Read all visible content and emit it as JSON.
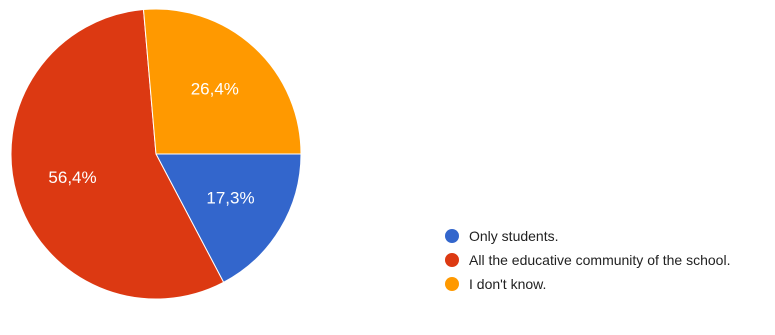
{
  "chart_data": {
    "type": "pie",
    "slices": [
      {
        "label": "Only students.",
        "value": 17.3,
        "display": "17,3%",
        "color": "#3366CC"
      },
      {
        "label": "All the educative community of the school.",
        "value": 56.4,
        "display": "56,4%",
        "color": "#DC3912"
      },
      {
        "label": "I don't know.",
        "value": 26.4,
        "display": "26,4%",
        "color": "#FF9900"
      }
    ],
    "legend_position": "bottom-right"
  }
}
